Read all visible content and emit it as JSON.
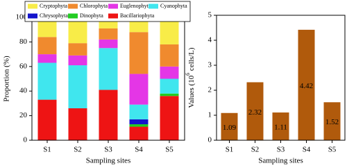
{
  "chart_data": [
    {
      "type": "stacked-bar",
      "ylabel": "Proportion (%)",
      "xlabel": "Sampling sites",
      "categories": [
        "S1",
        "S2",
        "S3",
        "S4",
        "S5"
      ],
      "ylim": [
        0,
        100
      ],
      "yticks": [
        0,
        20,
        40,
        60,
        80,
        100
      ],
      "legend": "top",
      "series": [
        {
          "name": "Cryptophyta",
          "color": "#f8ec48",
          "values": [
            16,
            21,
            9,
            12,
            22
          ]
        },
        {
          "name": "Chlorophyta",
          "color": "#f08a2e",
          "values": [
            14,
            10,
            9,
            34,
            18
          ]
        },
        {
          "name": "Euglenophyta",
          "color": "#e436e6",
          "values": [
            7,
            8,
            7,
            25,
            10
          ]
        },
        {
          "name": "Cyanophyta",
          "color": "#40e6ee",
          "values": [
            30,
            35,
            34,
            12,
            12
          ]
        },
        {
          "name": "Chrysophyta",
          "color": "#1414cc",
          "values": [
            0,
            0,
            0,
            4,
            0
          ]
        },
        {
          "name": "Dinophyta",
          "color": "#22cc22",
          "values": [
            0,
            0,
            0,
            2,
            2
          ]
        },
        {
          "name": "Bacillariophyta",
          "color": "#ee1414",
          "values": [
            33,
            26,
            41,
            11,
            36
          ]
        }
      ]
    },
    {
      "type": "bar",
      "ylabel_parts": [
        "Values (10",
        "6",
        " cells/L)"
      ],
      "xlabel": "Sampling sites",
      "categories": [
        "S1",
        "S2",
        "S3",
        "S4",
        "S5"
      ],
      "values": [
        1.09,
        2.32,
        1.11,
        4.42,
        1.52
      ],
      "color": "#b05a0c",
      "ylim": [
        0,
        5
      ],
      "yticks": [
        0,
        1,
        2,
        3,
        4,
        5
      ]
    }
  ]
}
